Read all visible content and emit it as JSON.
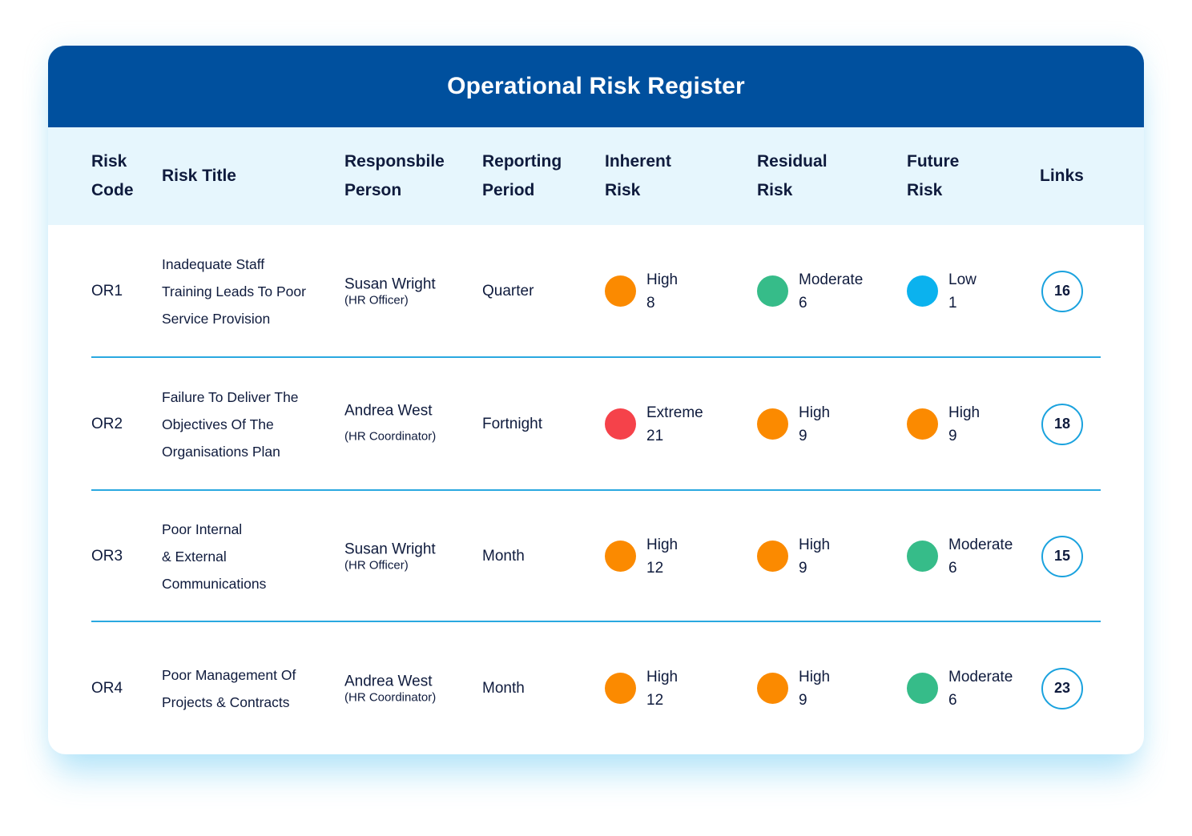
{
  "title": "Operational Risk Register",
  "colors": {
    "header_bg": "#00509e",
    "column_header_bg": "#e6f6fd",
    "divider": "#2aa8e0",
    "extreme": "#f5424a",
    "high": "#fb8a00",
    "moderate": "#36bc89",
    "low": "#0bb2ee"
  },
  "columns": {
    "risk_code": [
      "Risk",
      "Code"
    ],
    "risk_title": [
      "Risk Title"
    ],
    "responsible_person": [
      "Responsbile",
      "Person"
    ],
    "reporting_period": [
      "Reporting",
      "Period"
    ],
    "inherent_risk": [
      "Inherent",
      "Risk"
    ],
    "residual_risk": [
      "Residual",
      "Risk"
    ],
    "future_risk": [
      "Future",
      "Risk"
    ],
    "links": [
      "Links"
    ]
  },
  "rows": [
    {
      "code": "OR1",
      "title_lines": [
        "Inadequate Staff",
        "Training Leads To Poor",
        "Service Provision"
      ],
      "person": "Susan Wright",
      "role": "(HR Officer)",
      "period": "Quarter",
      "inherent": {
        "level": "High",
        "score": "8",
        "color": "#fb8a00"
      },
      "residual": {
        "level": "Moderate",
        "score": "6",
        "color": "#36bc89"
      },
      "future": {
        "level": "Low",
        "score": "1",
        "color": "#0bb2ee"
      },
      "links": "16"
    },
    {
      "code": "OR2",
      "title_lines": [
        "Failure To Deliver The",
        "Objectives Of The",
        "Organisations Plan"
      ],
      "person": "Andrea West",
      "role": "(HR Coordinator)",
      "period": "Fortnight",
      "inherent": {
        "level": "Extreme",
        "score": "21",
        "color": "#f5424a"
      },
      "residual": {
        "level": "High",
        "score": "9",
        "color": "#fb8a00"
      },
      "future": {
        "level": "High",
        "score": "9",
        "color": "#fb8a00"
      },
      "links": "18"
    },
    {
      "code": "OR3",
      "title_lines": [
        "Poor Internal",
        "& External",
        "Communications"
      ],
      "person": "Susan Wright",
      "role": "(HR Officer)",
      "period": "Month",
      "inherent": {
        "level": "High",
        "score": "12",
        "color": "#fb8a00"
      },
      "residual": {
        "level": "High",
        "score": "9",
        "color": "#fb8a00"
      },
      "future": {
        "level": "Moderate",
        "score": "6",
        "color": "#36bc89"
      },
      "links": "15"
    },
    {
      "code": "OR4",
      "title_lines": [
        "Poor Management Of",
        "Projects & Contracts"
      ],
      "person": "Andrea West",
      "role": "(HR Coordinator)",
      "period": "Month",
      "inherent": {
        "level": "High",
        "score": "12",
        "color": "#fb8a00"
      },
      "residual": {
        "level": "High",
        "score": "9",
        "color": "#fb8a00"
      },
      "future": {
        "level": "Moderate",
        "score": "6",
        "color": "#36bc89"
      },
      "links": "23"
    }
  ]
}
